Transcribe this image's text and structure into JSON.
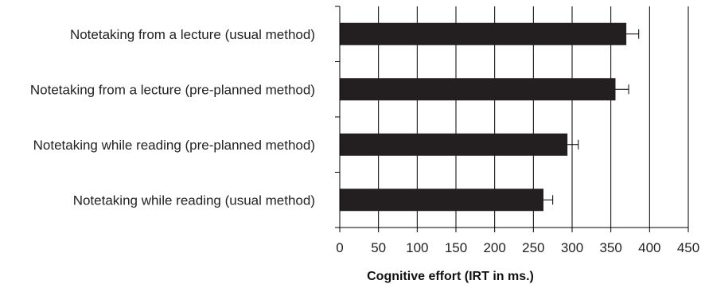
{
  "chart_data": {
    "type": "bar",
    "orientation": "horizontal",
    "categories": [
      "Notetaking from a lecture (usual method)",
      "Notetaking from a lecture (pre-planned method)",
      "Notetaking while reading (pre-planned method)",
      "Notetaking while reading (usual method)"
    ],
    "values": [
      370,
      356,
      294,
      263
    ],
    "errors": [
      16,
      17,
      14,
      12
    ],
    "xlabel": "Cognitive effort (IRT in ms.)",
    "ylabel": "",
    "xlim": [
      0,
      450
    ],
    "xticks": [
      "0",
      "50",
      "100",
      "150",
      "200",
      "250",
      "300",
      "350",
      "400",
      "450"
    ],
    "grid": "vertical",
    "bar_color": "#231f20",
    "legend": "none"
  }
}
